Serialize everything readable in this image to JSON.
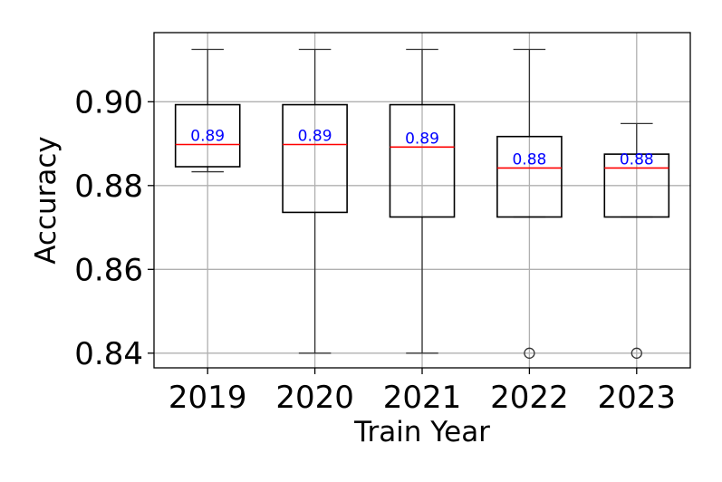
{
  "chart_data": {
    "type": "box",
    "xlabel": "Train Year",
    "ylabel": "Accuracy",
    "ylim": [
      0.8365,
      0.9165
    ],
    "y_ticks": [
      0.84,
      0.86,
      0.88,
      0.9
    ],
    "y_tick_labels": [
      "0.84",
      "0.86",
      "0.88",
      "0.90"
    ],
    "grid": true,
    "categories": [
      "2019",
      "2020",
      "2021",
      "2022",
      "2023"
    ],
    "boxes": [
      {
        "category": "2019",
        "whisker_low": 0.8833,
        "q1": 0.8845,
        "median": 0.8898,
        "q3": 0.8993,
        "whisker_high": 0.9125,
        "outliers": [],
        "median_label": "0.89"
      },
      {
        "category": "2020",
        "whisker_low": 0.84,
        "q1": 0.8736,
        "median": 0.8898,
        "q3": 0.8993,
        "whisker_high": 0.9125,
        "outliers": [],
        "median_label": "0.89"
      },
      {
        "category": "2021",
        "whisker_low": 0.84,
        "q1": 0.8725,
        "median": 0.8892,
        "q3": 0.8993,
        "whisker_high": 0.9125,
        "outliers": [],
        "median_label": "0.89"
      },
      {
        "category": "2022",
        "whisker_low": 0.8725,
        "q1": 0.8725,
        "median": 0.8842,
        "q3": 0.8917,
        "whisker_high": 0.9125,
        "outliers": [
          0.84
        ],
        "median_label": "0.88"
      },
      {
        "category": "2023",
        "whisker_low": 0.8725,
        "q1": 0.8725,
        "median": 0.8842,
        "q3": 0.8875,
        "whisker_high": 0.8948,
        "outliers": [
          0.84
        ],
        "median_label": "0.88"
      }
    ],
    "colors": {
      "box": "#000000",
      "whisker": "#333333",
      "median": "#ff0000",
      "median_label": "#0000ff",
      "grid": "#b0b0b0",
      "outlier": "#333333"
    }
  }
}
